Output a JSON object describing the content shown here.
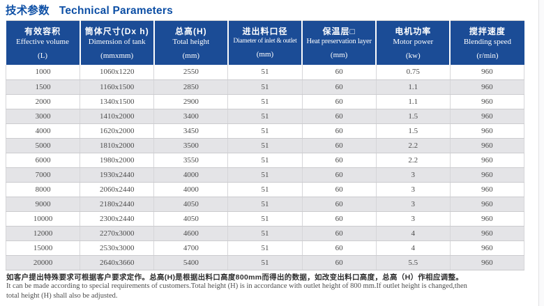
{
  "page": {
    "title_zh": "技术参数",
    "title_en": "Technical Parameters"
  },
  "colors": {
    "title_blue": "#0d4fa5",
    "header_blue": "#1b4c96",
    "row_alt_gray": "#e4e4e7",
    "body_text": "#4a4a4a"
  },
  "table": {
    "columns": [
      {
        "zh": "有效容积",
        "en": "Effective volume",
        "unit": "(L)"
      },
      {
        "zh": "筒体尺寸(Dx h)",
        "en": "Dimension of tank",
        "unit": "(mmxmm)"
      },
      {
        "zh": "总高(H)",
        "en": "Total height",
        "unit": "(mm)"
      },
      {
        "zh": "进出料口径",
        "en": "Diameter of inlet & outlet",
        "unit": "(mm)"
      },
      {
        "zh": "保温层□",
        "en": "Heat preservation layer",
        "unit": "(mm)"
      },
      {
        "zh": "电机功率",
        "en": "Motor power",
        "unit": "(kw)"
      },
      {
        "zh": "搅拌速度",
        "en": "Blending speed",
        "unit": "(r/min)"
      }
    ],
    "rows": [
      [
        "1000",
        "1060x1220",
        "2550",
        "51",
        "60",
        "0.75",
        "960"
      ],
      [
        "1500",
        "1160x1500",
        "2850",
        "51",
        "60",
        "1.1",
        "960"
      ],
      [
        "2000",
        "1340x1500",
        "2900",
        "51",
        "60",
        "1.1",
        "960"
      ],
      [
        "3000",
        "1410x2000",
        "3400",
        "51",
        "60",
        "1.5",
        "960"
      ],
      [
        "4000",
        "1620x2000",
        "3450",
        "51",
        "60",
        "1.5",
        "960"
      ],
      [
        "5000",
        "1810x2000",
        "3500",
        "51",
        "60",
        "2.2",
        "960"
      ],
      [
        "6000",
        "1980x2000",
        "3550",
        "51",
        "60",
        "2.2",
        "960"
      ],
      [
        "7000",
        "1930x2440",
        "4000",
        "51",
        "60",
        "3",
        "960"
      ],
      [
        "8000",
        "2060x2440",
        "4000",
        "51",
        "60",
        "3",
        "960"
      ],
      [
        "9000",
        "2180x2440",
        "4050",
        "51",
        "60",
        "3",
        "960"
      ],
      [
        "10000",
        "2300x2440",
        "4050",
        "51",
        "60",
        "3",
        "960"
      ],
      [
        "12000",
        "2270x3000",
        "4600",
        "51",
        "60",
        "4",
        "960"
      ],
      [
        "15000",
        "2530x3000",
        "4700",
        "51",
        "60",
        "4",
        "960"
      ],
      [
        "20000",
        "2640x3660",
        "5400",
        "51",
        "60",
        "5.5",
        "960"
      ]
    ]
  },
  "notes": {
    "zh": "如客户提出特殊要求可根据客户要求定作。总高(H)是根据出料口高度800mm而得出的数据，如改变出料口高度，总高（H）作相应调整。",
    "en_line1": "It can be made according to special requirements of customers.Total height (H) is in accordance with outlet height of 800 mm.If outlet height is changed,then",
    "en_line2": "total height (H) shall also be adjusted."
  }
}
